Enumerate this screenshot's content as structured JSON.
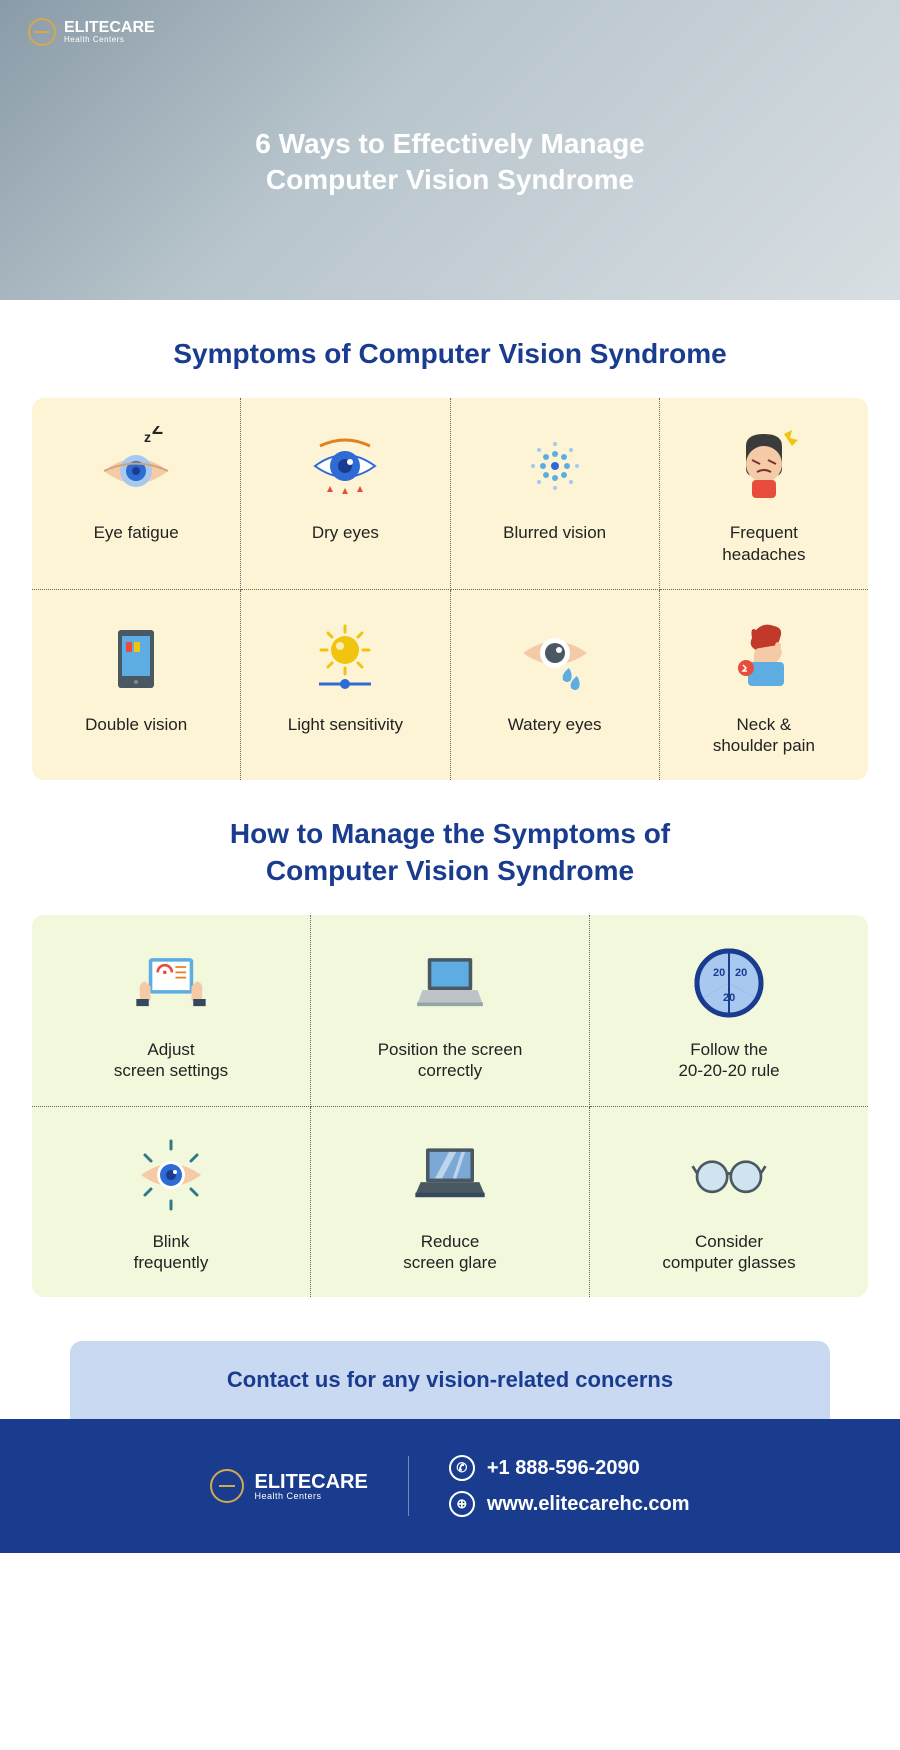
{
  "brand": {
    "name": "ELITECARE",
    "tagline": "Health Centers",
    "accent_color": "#d4a94e"
  },
  "hero": {
    "title": "6 Ways to Effectively Manage\nComputer Vision Syndrome",
    "bg_gradient": [
      "#8a9ba8",
      "#b8c5cc",
      "#d8dfe3"
    ]
  },
  "sections": {
    "symptoms": {
      "title": "Symptoms of Computer Vision Syndrome",
      "bg_color": "#fdf4d5",
      "items": [
        {
          "label": "Eye fatigue",
          "icon": "eye-sleepy"
        },
        {
          "label": "Dry eyes",
          "icon": "eye-dry"
        },
        {
          "label": "Blurred vision",
          "icon": "blur-dots"
        },
        {
          "label": "Frequent\nheadaches",
          "icon": "headache"
        },
        {
          "label": "Double vision",
          "icon": "phone-double"
        },
        {
          "label": "Light sensitivity",
          "icon": "sun"
        },
        {
          "label": "Watery eyes",
          "icon": "eye-tear"
        },
        {
          "label": "Neck &\nshoulder pain",
          "icon": "neck-pain"
        }
      ]
    },
    "manage": {
      "title": "How to Manage the Symptoms of\nComputer Vision Syndrome",
      "bg_color": "#f2f8dc",
      "items": [
        {
          "label": "Adjust\nscreen settings",
          "icon": "tablet-hands"
        },
        {
          "label": "Position the screen\ncorrectly",
          "icon": "laptop"
        },
        {
          "label": "Follow the\n20-20-20 rule",
          "icon": "clock-20"
        },
        {
          "label": "Blink\nfrequently",
          "icon": "eye-blink"
        },
        {
          "label": "Reduce\nscreen glare",
          "icon": "laptop-glare"
        },
        {
          "label": "Consider\ncomputer glasses",
          "icon": "glasses"
        }
      ]
    }
  },
  "contact": {
    "banner": "Contact us for any vision-related concerns",
    "phone": "+1 888-596-2090",
    "website": "www.elitecarehc.com"
  },
  "colors": {
    "primary": "#1a3c8f",
    "contact_bg": "#c9d9f2",
    "eye_blue": "#2e6bd4",
    "skin": "#f5cba7",
    "red": "#e74c3c",
    "orange": "#e67e22",
    "yellow": "#f1c40f",
    "dark_gray": "#4a5864",
    "light_blue": "#5dade2"
  }
}
